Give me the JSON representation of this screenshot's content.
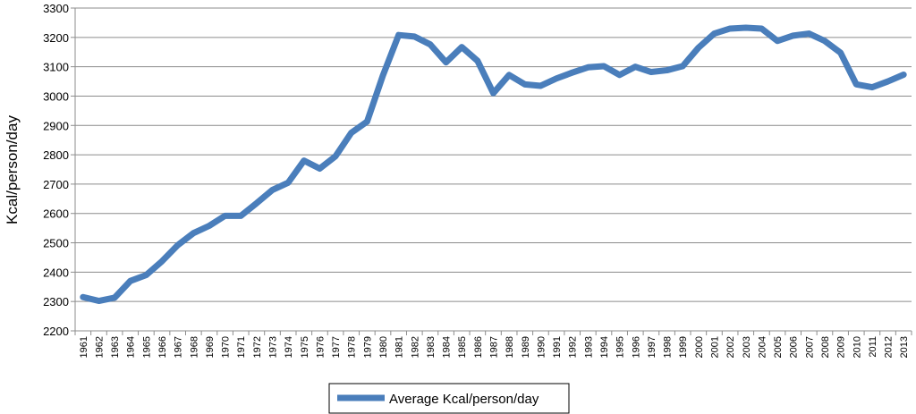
{
  "chart_data": {
    "type": "line",
    "title": "",
    "xlabel": "",
    "ylabel": "Kcal/person/day",
    "ylim": [
      2200,
      3300
    ],
    "yticks": [
      2200,
      2300,
      2400,
      2500,
      2600,
      2700,
      2800,
      2900,
      3000,
      3100,
      3200,
      3300
    ],
    "grid": true,
    "legend_position": "bottom",
    "line_color": "#4a7ebb",
    "x": [
      "1961",
      "1962",
      "1963",
      "1964",
      "1965",
      "1966",
      "1967",
      "1968",
      "1969",
      "1970",
      "1971",
      "1972",
      "1973",
      "1974",
      "1975",
      "1976",
      "1977",
      "1978",
      "1979",
      "1980",
      "1981",
      "1982",
      "1983",
      "1984",
      "1985",
      "1986",
      "1987",
      "1988",
      "1989",
      "1990",
      "1991",
      "1992",
      "1993",
      "1994",
      "1995",
      "1996",
      "1997",
      "1998",
      "1999",
      "2000",
      "2001",
      "2002",
      "2003",
      "2004",
      "2005",
      "2006",
      "2007",
      "2008",
      "2009",
      "2010",
      "2011",
      "2012",
      "2013"
    ],
    "series": [
      {
        "name": "Average Kcal/person/day",
        "values": [
          2315,
          2302,
          2313,
          2370,
          2390,
          2437,
          2492,
          2533,
          2558,
          2592,
          2592,
          2635,
          2680,
          2705,
          2780,
          2753,
          2795,
          2875,
          2913,
          3070,
          3208,
          3203,
          3176,
          3115,
          3167,
          3120,
          3010,
          3072,
          3040,
          3035,
          3060,
          3080,
          3098,
          3102,
          3072,
          3100,
          3082,
          3088,
          3102,
          3165,
          3213,
          3230,
          3233,
          3230,
          3188,
          3206,
          3213,
          3188,
          3148,
          3040,
          3030,
          3050,
          3073
        ]
      }
    ]
  }
}
